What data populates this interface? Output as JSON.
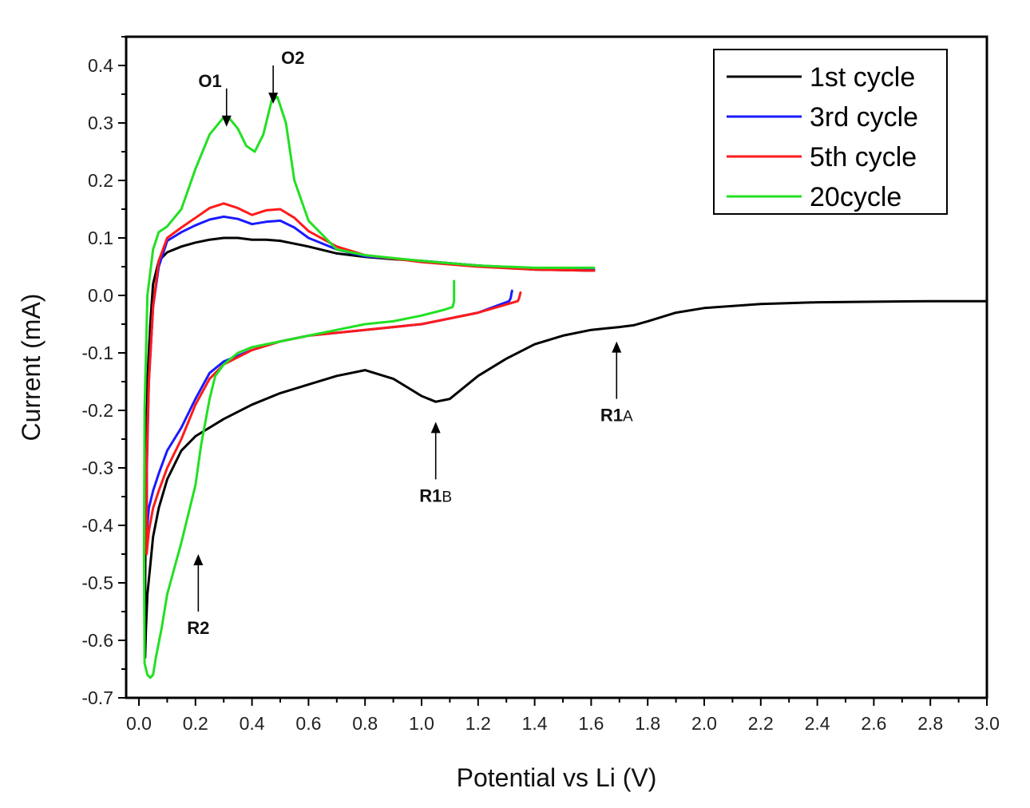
{
  "chart_data": {
    "type": "line",
    "title": "",
    "xlabel": "Potential vs Li (V)",
    "ylabel": "Current  (mA)",
    "xlim": [
      0.0,
      3.0
    ],
    "ylim": [
      -0.7,
      0.45
    ],
    "x_ticks": [
      "0.0",
      "0.2",
      "0.4",
      "0.6",
      "0.8",
      "1.0",
      "1.2",
      "1.4",
      "1.6",
      "1.8",
      "2.0",
      "2.2",
      "2.4",
      "2.6",
      "2.8",
      "3.0"
    ],
    "x_tick_values": [
      0.0,
      0.2,
      0.4,
      0.6,
      0.8,
      1.0,
      1.2,
      1.4,
      1.6,
      1.8,
      2.0,
      2.2,
      2.4,
      2.6,
      2.8,
      3.0
    ],
    "y_ticks": [
      "-0.7",
      "-0.6",
      "-0.5",
      "-0.4",
      "-0.3",
      "-0.2",
      "-0.1",
      "0.0",
      "0.1",
      "0.2",
      "0.3",
      "0.4"
    ],
    "y_tick_values": [
      -0.7,
      -0.6,
      -0.5,
      -0.4,
      -0.3,
      -0.2,
      -0.1,
      0.0,
      0.1,
      0.2,
      0.3,
      0.4
    ],
    "grid": false,
    "legend_position": "top-right",
    "series": [
      {
        "name": "1st cycle",
        "color": "#000000",
        "x": [
          3.0,
          2.8,
          2.6,
          2.4,
          2.2,
          2.0,
          1.9,
          1.8,
          1.75,
          1.7,
          1.6,
          1.5,
          1.4,
          1.3,
          1.2,
          1.15,
          1.1,
          1.05,
          1.0,
          0.9,
          0.8,
          0.7,
          0.6,
          0.5,
          0.4,
          0.3,
          0.2,
          0.15,
          0.1,
          0.07,
          0.05,
          0.04,
          0.03,
          0.025,
          0.022,
          0.022,
          0.025,
          0.03,
          0.04,
          0.05,
          0.07,
          0.1,
          0.15,
          0.2,
          0.25,
          0.3,
          0.35,
          0.4,
          0.45,
          0.5,
          0.55,
          0.6,
          0.7,
          0.8,
          0.9,
          1.0,
          1.2,
          1.4,
          1.61
        ],
        "y": [
          -0.01,
          -0.01,
          -0.011,
          -0.012,
          -0.015,
          -0.022,
          -0.03,
          -0.045,
          -0.052,
          -0.055,
          -0.06,
          -0.07,
          -0.085,
          -0.11,
          -0.14,
          -0.16,
          -0.18,
          -0.185,
          -0.175,
          -0.145,
          -0.13,
          -0.14,
          -0.155,
          -0.17,
          -0.19,
          -0.215,
          -0.245,
          -0.27,
          -0.32,
          -0.37,
          -0.42,
          -0.47,
          -0.52,
          -0.58,
          -0.63,
          -0.5,
          -0.3,
          -0.15,
          -0.05,
          0.02,
          0.06,
          0.075,
          0.085,
          0.092,
          0.097,
          0.1,
          0.1,
          0.097,
          0.097,
          0.095,
          0.09,
          0.085,
          0.073,
          0.067,
          0.063,
          0.06,
          0.052,
          0.045,
          0.043
        ]
      },
      {
        "name": "3rd cycle",
        "color": "#1a1aff",
        "x": [
          1.32,
          1.315,
          1.31,
          1.2,
          1.0,
          0.8,
          0.6,
          0.5,
          0.4,
          0.3,
          0.25,
          0.2,
          0.15,
          0.1,
          0.07,
          0.05,
          0.035,
          0.028,
          0.028,
          0.035,
          0.05,
          0.07,
          0.1,
          0.15,
          0.2,
          0.25,
          0.3,
          0.35,
          0.4,
          0.45,
          0.5,
          0.55,
          0.6,
          0.7,
          0.8,
          1.0,
          1.2,
          1.4,
          1.61
        ],
        "y": [
          0.008,
          -0.005,
          -0.01,
          -0.03,
          -0.05,
          -0.06,
          -0.07,
          -0.08,
          -0.095,
          -0.115,
          -0.135,
          -0.18,
          -0.23,
          -0.27,
          -0.31,
          -0.34,
          -0.37,
          -0.41,
          -0.3,
          -0.15,
          -0.02,
          0.05,
          0.095,
          0.11,
          0.122,
          0.132,
          0.137,
          0.133,
          0.124,
          0.128,
          0.13,
          0.118,
          0.1,
          0.08,
          0.068,
          0.06,
          0.052,
          0.047,
          0.045
        ]
      },
      {
        "name": "5th cycle",
        "color": "#ff1a1a",
        "x": [
          1.35,
          1.345,
          1.34,
          1.2,
          1.0,
          0.8,
          0.6,
          0.5,
          0.4,
          0.3,
          0.25,
          0.2,
          0.15,
          0.1,
          0.07,
          0.05,
          0.035,
          0.027,
          0.027,
          0.035,
          0.05,
          0.07,
          0.1,
          0.15,
          0.2,
          0.25,
          0.3,
          0.35,
          0.4,
          0.45,
          0.5,
          0.55,
          0.6,
          0.7,
          0.8,
          1.0,
          1.2,
          1.4,
          1.61
        ],
        "y": [
          0.005,
          -0.005,
          -0.01,
          -0.03,
          -0.05,
          -0.06,
          -0.07,
          -0.08,
          -0.095,
          -0.12,
          -0.145,
          -0.19,
          -0.25,
          -0.3,
          -0.34,
          -0.37,
          -0.41,
          -0.45,
          -0.3,
          -0.15,
          -0.02,
          0.06,
          0.1,
          0.118,
          0.135,
          0.152,
          0.16,
          0.152,
          0.14,
          0.148,
          0.15,
          0.135,
          0.112,
          0.085,
          0.07,
          0.058,
          0.05,
          0.045,
          0.043
        ]
      },
      {
        "name": "20cycle",
        "color": "#22e022",
        "x": [
          1.115,
          1.115,
          1.11,
          1.08,
          1.0,
          0.9,
          0.8,
          0.7,
          0.6,
          0.5,
          0.4,
          0.35,
          0.3,
          0.27,
          0.25,
          0.22,
          0.2,
          0.15,
          0.1,
          0.08,
          0.06,
          0.05,
          0.04,
          0.03,
          0.02,
          0.018,
          0.02,
          0.03,
          0.05,
          0.07,
          0.1,
          0.15,
          0.2,
          0.25,
          0.3,
          0.32,
          0.35,
          0.38,
          0.41,
          0.44,
          0.47,
          0.49,
          0.52,
          0.55,
          0.6,
          0.7,
          0.8,
          1.0,
          1.2,
          1.4,
          1.61
        ],
        "y": [
          0.025,
          -0.01,
          -0.02,
          -0.025,
          -0.035,
          -0.045,
          -0.05,
          -0.06,
          -0.07,
          -0.08,
          -0.09,
          -0.1,
          -0.12,
          -0.14,
          -0.18,
          -0.26,
          -0.33,
          -0.43,
          -0.52,
          -0.58,
          -0.63,
          -0.66,
          -0.665,
          -0.66,
          -0.64,
          -0.45,
          -0.2,
          0.0,
          0.08,
          0.11,
          0.12,
          0.15,
          0.22,
          0.28,
          0.31,
          0.308,
          0.29,
          0.26,
          0.25,
          0.28,
          0.34,
          0.345,
          0.3,
          0.2,
          0.13,
          0.08,
          0.07,
          0.06,
          0.052,
          0.048,
          0.048
        ]
      }
    ],
    "annotations": [
      {
        "id": "o1",
        "label": "O1",
        "sub": "",
        "x": 0.31,
        "y": 0.36,
        "direction": "down"
      },
      {
        "id": "o2",
        "label": "O2",
        "sub": "",
        "x": 0.475,
        "y": 0.4,
        "direction": "down"
      },
      {
        "id": "r1a",
        "label": "R1",
        "sub": "A",
        "x": 1.69,
        "y": -0.08,
        "direction": "up"
      },
      {
        "id": "r1b",
        "label": "R1",
        "sub": "B",
        "x": 1.05,
        "y": -0.22,
        "direction": "up"
      },
      {
        "id": "r2",
        "label": "R2",
        "sub": "",
        "x": 0.21,
        "y": -0.45,
        "direction": "up"
      }
    ]
  }
}
